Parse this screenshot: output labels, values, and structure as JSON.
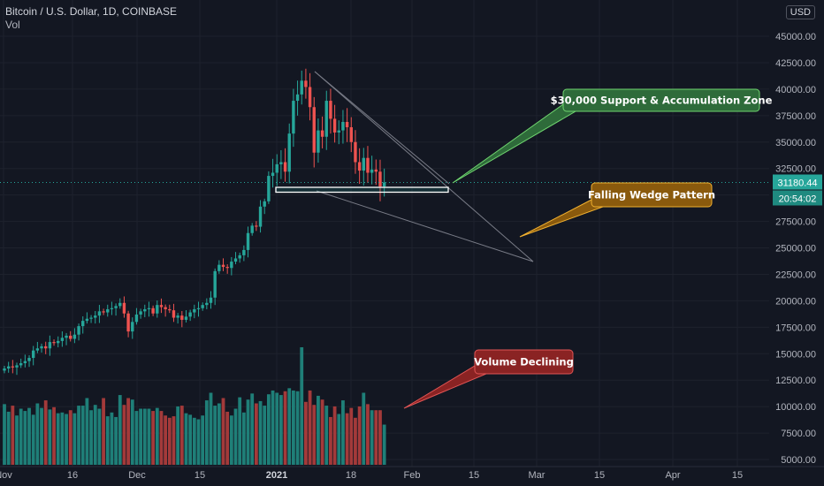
{
  "header": {
    "symbol": "Bitcoin / U.S. Dollar, 1D, COINBASE",
    "indicator": "Vol",
    "currency": "USD"
  },
  "colors": {
    "background": "#131722",
    "up": "#26a69a",
    "down": "#ef5350",
    "vol_up": "#1f7f78",
    "vol_down": "#a33a3a",
    "wedge": "#787b86",
    "support_box": "#ffffff"
  },
  "chart_data": {
    "type": "candlestick",
    "title": "Bitcoin / U.S. Dollar, 1D, COINBASE",
    "y_axis": {
      "ticks": [
        "5000.00",
        "7500.00",
        "10000.00",
        "12500.00",
        "15000.00",
        "17500.00",
        "20000.00",
        "22500.00",
        "25000.00",
        "27500.00",
        "30000.00",
        "32500.00",
        "35000.00",
        "37500.00",
        "40000.00",
        "42500.00",
        "45000.00"
      ],
      "range": [
        4200,
        47800
      ]
    },
    "x_axis": {
      "ticks": [
        "Nov",
        "16",
        "Dec",
        "15",
        "2021",
        "18",
        "Feb",
        "15",
        "Mar",
        "15",
        "Apr",
        "15"
      ]
    },
    "last_price": "31180.44",
    "countdown": "20:54:02",
    "closes": [
      13600,
      13800,
      13700,
      13900,
      14100,
      14300,
      14600,
      15300,
      15500,
      15700,
      15500,
      16100,
      16000,
      16200,
      16500,
      16700,
      16400,
      16800,
      17600,
      18100,
      18300,
      18400,
      18600,
      19000,
      18900,
      19200,
      19300,
      19500,
      19800,
      18800,
      17100,
      18000,
      18700,
      19000,
      19200,
      19300,
      18800,
      19600,
      19400,
      19200,
      19100,
      18400,
      18600,
      18200,
      18500,
      18900,
      19200,
      19300,
      19600,
      19800,
      20300,
      22800,
      23400,
      23200,
      23100,
      23700,
      24000,
      24300,
      24800,
      26400,
      27100,
      27000,
      28900,
      29400,
      31800,
      32100,
      32900,
      33100,
      32200,
      35800,
      38900,
      39500,
      40800,
      40200,
      38300,
      34000,
      36100,
      35500,
      38900,
      37200,
      35900,
      36100,
      36900,
      36400,
      35000,
      33100,
      32300,
      33500,
      32100,
      32400,
      32200,
      30800,
      31180
    ],
    "volumes": [
      8000,
      7000,
      7800,
      6500,
      7400,
      7100,
      7500,
      6600,
      8100,
      7500,
      8500,
      7300,
      7600,
      6800,
      6900,
      6700,
      7200,
      6800,
      7800,
      7800,
      8800,
      7200,
      7900,
      7400,
      8800,
      6400,
      6900,
      6300,
      9200,
      7900,
      8800,
      8600,
      7100,
      7400,
      7400,
      7400,
      7100,
      7500,
      7100,
      6500,
      6200,
      6400,
      7700,
      7800,
      6800,
      6600,
      6200,
      6000,
      6500,
      8500,
      9500,
      7800,
      8100,
      8800,
      7000,
      6500,
      7400,
      8900,
      6900,
      8600,
      9400,
      8100,
      8400,
      7800,
      9300,
      9800,
      9500,
      9200,
      9700,
      10100,
      9800,
      9700,
      15500,
      8300,
      9800,
      7900,
      9100,
      8600,
      7800,
      6300,
      7700,
      6700,
      8500,
      6800,
      7500,
      6200,
      7700,
      9500,
      8000,
      7200,
      7200,
      7200,
      5300
    ],
    "volume_axis_max": 15500,
    "annotations": [
      {
        "text": "$30,000 Support & Accumulation Zone"
      },
      {
        "text": "Falling Wedge Pattern"
      },
      {
        "text": "Volume Declining"
      }
    ]
  }
}
